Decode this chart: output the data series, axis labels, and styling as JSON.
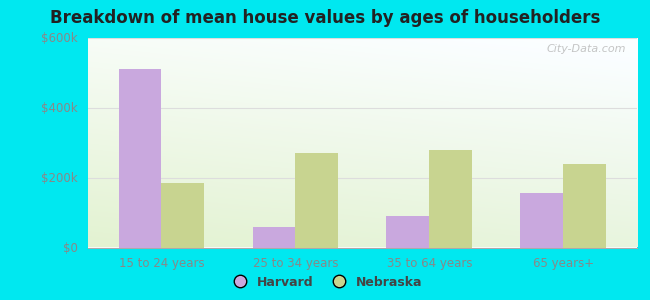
{
  "title": "Breakdown of mean house values by ages of householders",
  "categories": [
    "15 to 24 years",
    "25 to 34 years",
    "35 to 64 years",
    "65 years+"
  ],
  "harvard_values": [
    510000,
    60000,
    90000,
    155000
  ],
  "nebraska_values": [
    185000,
    270000,
    280000,
    240000
  ],
  "harvard_color": "#c9a8de",
  "nebraska_color": "#c8d490",
  "ylim": [
    0,
    600000
  ],
  "yticks": [
    0,
    200000,
    400000,
    600000
  ],
  "ytick_labels": [
    "$0",
    "$200k",
    "$400k",
    "$600k"
  ],
  "outer_bg": "#00e8f0",
  "bg_color_top": "#f0faf0",
  "bg_color_bottom": "#d8eec8",
  "watermark": "City-Data.com",
  "legend_harvard": "Harvard",
  "legend_nebraska": "Nebraska",
  "bar_width": 0.32,
  "tick_color": "#888888",
  "grid_color": "#dddddd",
  "title_fontsize": 12,
  "tick_fontsize": 8.5
}
